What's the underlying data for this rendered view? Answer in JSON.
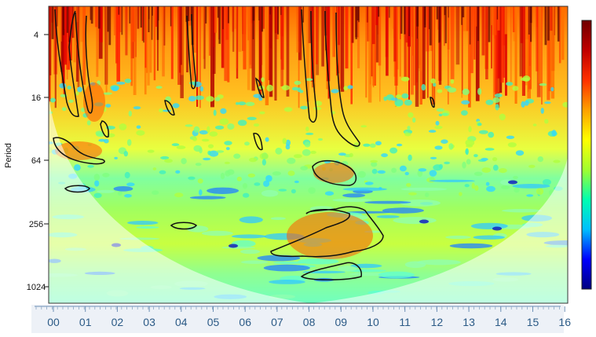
{
  "chart_data": {
    "type": "heatmap",
    "title": "",
    "xlabel": "",
    "ylabel": "Period",
    "y_scale": "log2",
    "y_ticks": [
      "4",
      "16",
      "64",
      "256",
      "1024"
    ],
    "x_ticks": [
      "00",
      "01",
      "02",
      "03",
      "04",
      "05",
      "06",
      "07",
      "08",
      "09",
      "10",
      "11",
      "12",
      "13",
      "14",
      "15",
      "16"
    ],
    "colorbar": {
      "position": "right",
      "colors": [
        "#000080",
        "#0000ff",
        "#00bfff",
        "#00ffb0",
        "#a0ff30",
        "#ffff00",
        "#ffa000",
        "#ff3000",
        "#c00000",
        "#700000"
      ]
    },
    "cone_of_influence": true,
    "significance_contours": true,
    "grid": false
  }
}
